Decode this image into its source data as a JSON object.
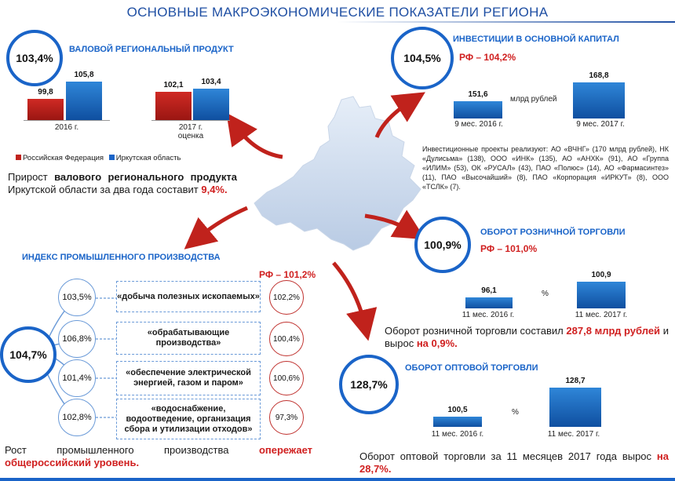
{
  "title": "ОСНОВНЫЕ МАКРОЭКОНОМИЧЕСКИЕ ПОКАЗАТЕЛИ РЕГИОНА",
  "grp": {
    "circle": "103,4%",
    "heading": "ВАЛОВОЙ РЕГИОНАЛЬНЫЙ ПРОДУКТ",
    "groups": [
      {
        "label": "2016 г.",
        "rf": "99,8",
        "io": "105,8",
        "rf_v": 99.8,
        "io_v": 105.8
      },
      {
        "label": "2017 г.",
        "sublabel": "оценка",
        "rf": "102,1",
        "io": "103,4",
        "rf_v": 102.1,
        "io_v": 103.4
      }
    ],
    "legend_rf": "Российская Федерация",
    "legend_io": "Иркутская область",
    "colors": {
      "rf": "#c0221c",
      "io": "#1a64c8"
    },
    "text_a": "Прирост ",
    "text_b": "валового регионального продукта",
    "text_c": " Иркутской области за два года составит ",
    "text_d": "9,4%."
  },
  "investments": {
    "circle": "104,5%",
    "heading": "ИНВЕСТИЦИИ В ОСНОВНОЙ КАПИТАЛ",
    "rf": "РФ – 104,2%",
    "unit": "млрд рублей",
    "bars": [
      {
        "value": "151,6",
        "label": "9 мес. 2016 г.",
        "v": 151.6
      },
      {
        "value": "168,8",
        "label": "9 мес. 2017 г.",
        "v": 168.8
      }
    ],
    "projects": "Инвестиционные проекты реализуют: АО «ВЧНГ» (170 млрд рублей), НК «Дулисьма» (138), ООО «ИНК» (135), АО «АНХК» (91), АО «Группа «ИЛИМ» (53), ОК «РУСАЛ» (43), ПАО «Полюс» (14), АО «Фармасинтез» (11), ПАО «Высочайший» (8), ПАО «Корпорация «ИРКУТ» (8), ООО «ТСЛК» (7)."
  },
  "retail": {
    "circle": "100,9%",
    "heading": "ОБОРОТ РОЗНИЧНОЙ ТОРГОВЛИ",
    "rf": "РФ – 101,0%",
    "unit": "%",
    "bars": [
      {
        "value": "96,1",
        "label": "11 мес. 2016 г.",
        "v": 96.1
      },
      {
        "value": "100,9",
        "label": "11 мес. 2017 г.",
        "v": 100.9
      }
    ],
    "text_a": "Оборот розничной торговли составил ",
    "text_b": "287,8 млрд рублей",
    "text_c": " и вырос ",
    "text_d": "на 0,9%."
  },
  "wholesale": {
    "circle": "128,7%",
    "heading": "ОБОРОТ ОПТОВОЙ ТОРГОВЛИ",
    "unit": "%",
    "bars": [
      {
        "value": "100,5",
        "label": "11 мес. 2016 г.",
        "v": 100.5
      },
      {
        "value": "128,7",
        "label": "11 мес. 2017 г.",
        "v": 128.7
      }
    ],
    "text_a": "Оборот оптовой торговли за 11 месяцев 2017 года вырос ",
    "text_b": "на 28,7%."
  },
  "industry": {
    "heading": "ИНДЕКС ПРОМЫШЛЕННОГО ПРОИЗВОДСТВА",
    "rf": "РФ – 101,2%",
    "main": "104,7%",
    "rows": [
      {
        "region": "103,5%",
        "name": "«добыча полезных ископаемых»",
        "rf": "102,2%"
      },
      {
        "region": "106,8%",
        "name": "«обрабатывающие производства»",
        "rf": "100,4%"
      },
      {
        "region": "101,4%",
        "name": "«обеспечение электрической энергией, газом и паром»",
        "rf": "100,6%"
      },
      {
        "region": "102,8%",
        "name": "«водоснабжение, водоотведение, организация сбора и утилизации отходов»",
        "rf": "97,3%"
      }
    ],
    "text_a": "Рост промышленного производства ",
    "text_b": "опережает общероссийский уровень."
  }
}
